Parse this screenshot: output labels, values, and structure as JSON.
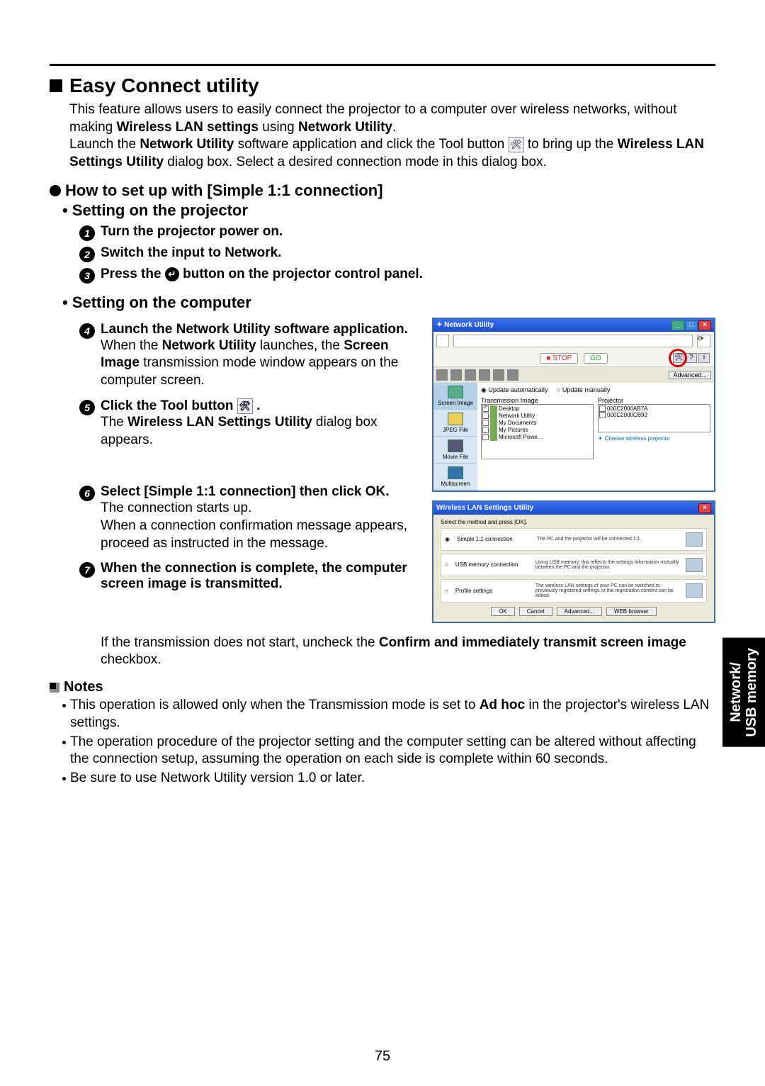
{
  "headings": {
    "h1": "Easy Connect utility",
    "h2": "How to set up with [Simple 1:1 connection]",
    "h3a": "• Setting on the projector",
    "h3b": "• Setting on the computer",
    "notes": "Notes"
  },
  "intro": {
    "p1a": "This feature allows users to easily connect the projector to a computer over wireless networks, without making ",
    "p1b": "Wireless LAN settings",
    "p1c": " using ",
    "p1d": "Network Utility",
    "p1e": ".",
    "p2a": "Launch the ",
    "p2b": "Network Utility",
    "p2c": " software application and click the Tool button ",
    "p2d": " to bring up the ",
    "p2e": "Wireless LAN Settings Utility",
    "p2f": " dialog box. Select a desired connection mode in this dialog box."
  },
  "steps": {
    "s1": "Turn the projector power on.",
    "s2": "Switch the input to Network.",
    "s3a": "Press the ",
    "s3b": " button on the projector control panel.",
    "s4": "Launch the Network Utility software application.",
    "s4ba": "When the ",
    "s4bb": "Network Utility",
    "s4bc": " launches, the ",
    "s4bd": "Screen Image",
    "s4be": " transmission mode window appears on the computer screen.",
    "s5a": "Click the Tool button ",
    "s5b": ".",
    "s5ba": "The ",
    "s5bb": "Wireless LAN Settings Utility",
    "s5bc": " dialog box appears.",
    "s6": "Select [Simple 1:1 connection] then click OK.",
    "s6b": "The connection starts up.\nWhen a connection confirmation message appears, proceed as instructed in the message.",
    "s7": "When the connection is complete, the computer screen image is transmitted.",
    "s7ba": "If the transmission does not start, uncheck the ",
    "s7bb": "Confirm and immediately transmit screen image",
    "s7bc": " checkbox."
  },
  "notes": {
    "n1a": "This operation is allowed only when the Transmission mode is set to ",
    "n1b": "Ad hoc",
    "n1c": " in the projector's wireless LAN settings.",
    "n2": "The operation procedure of the projector setting and the computer setting can be altered without affecting the connection setup, assuming the operation on each side is complete within 60 seconds.",
    "n3": "Be sure to use Network Utility version 1.0 or later."
  },
  "side_tab": "Network/\nUSB memory",
  "page_number": "75",
  "network_utility_window": {
    "title": "Network Utility",
    "stop": "STOP",
    "go": "GO",
    "advanced": "Advanced...",
    "side_tabs": [
      "Screen Image",
      "JPEG File",
      "Movie File",
      "Multiscreen"
    ],
    "radio1": "Update automatically",
    "radio2": "Update manually",
    "col1_label": "Transmission Image",
    "col2_label": "Projector",
    "transmission_items": [
      {
        "checked": true,
        "label": "Desktop"
      },
      {
        "checked": false,
        "label": "Network Utility"
      },
      {
        "checked": false,
        "label": "My Documents"
      },
      {
        "checked": false,
        "label": "My Pictures"
      },
      {
        "checked": false,
        "label": "Microsoft Powe..."
      }
    ],
    "projector_items": [
      {
        "checked": false,
        "label": "000C2000AB7A"
      },
      {
        "checked": false,
        "label": "000C2000CB92"
      }
    ],
    "choose_link": "Choose wireless projector"
  },
  "wlan_window": {
    "title": "Wireless LAN Settings Utility",
    "instruction": "Select the method and press [OK].",
    "options": [
      {
        "label": "Simple 1:1 connection",
        "desc": "The PC and the projector will be connected 1:1.",
        "selected": true
      },
      {
        "label": "USB memory connection",
        "desc": "Using USB memory, this reflects the settings information mutually between the PC and the projector.",
        "selected": false
      },
      {
        "label": "Profile settings",
        "desc": "The wireless LAN settings of your PC can be switched to previously registered settings or the registration content can be edited.",
        "selected": false
      }
    ],
    "buttons": [
      "OK",
      "Cancel",
      "Advanced...",
      "WEB browser"
    ]
  }
}
